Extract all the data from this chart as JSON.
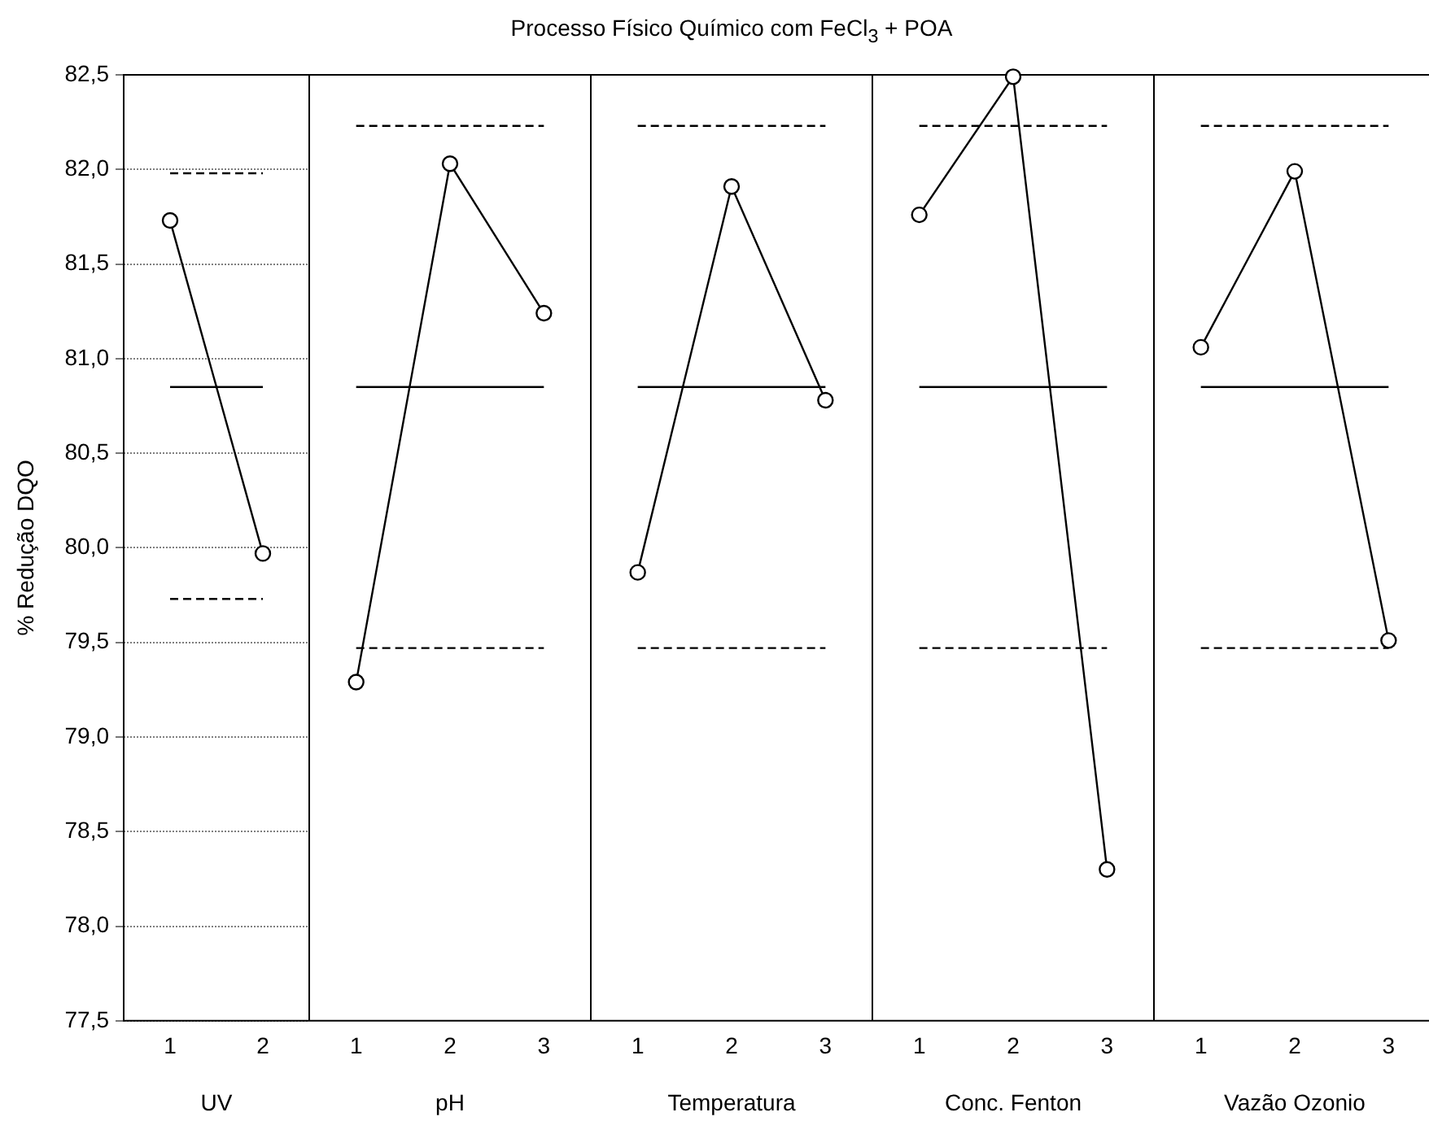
{
  "chart_data": [
    {
      "type": "line",
      "xlabel": "UV",
      "ylabel": "% Redução DQO",
      "categories": [
        "1",
        "2"
      ],
      "series": [
        {
          "color": "#000000",
          "values": [
            81.73,
            79.97
          ]
        }
      ],
      "ylim": [
        77.5,
        82.5
      ],
      "yticks": [
        {
          "value": 77.5,
          "label": "77,5"
        },
        {
          "value": 78,
          "label": "78,0"
        },
        {
          "value": 78.5,
          "label": "78,5"
        },
        {
          "value": 79,
          "label": "79,0"
        },
        {
          "value": 79.5,
          "label": "79,5"
        },
        {
          "value": 80,
          "label": "80,0"
        },
        {
          "value": 80.5,
          "label": "80,5"
        },
        {
          "value": 81,
          "label": "81,0"
        },
        {
          "value": 81.5,
          "label": "81,5"
        },
        {
          "value": 82,
          "label": "82,0"
        },
        {
          "value": 82.5,
          "label": "82,5"
        }
      ],
      "grid": "y",
      "marker": "circle",
      "line_style": "solid",
      "ref_lines": [
        {
          "axis": "y",
          "value": 80.85,
          "line_style": "solid"
        },
        {
          "axis": "y",
          "value": 81.98,
          "line_style": "dashed"
        },
        {
          "axis": "y",
          "value": 79.73,
          "line_style": "dashed"
        }
      ]
    },
    {
      "type": "line",
      "xlabel": "pH",
      "categories": [
        "1",
        "2",
        "3"
      ],
      "series": [
        {
          "color": "#000000",
          "values": [
            79.29,
            82.03,
            81.24
          ]
        }
      ],
      "ylim": [
        77.5,
        82.5
      ],
      "grid": "y",
      "marker": "circle",
      "line_style": "solid",
      "tick_labels": "x",
      "ref_lines": [
        {
          "axis": "y",
          "value": 80.85,
          "line_style": "solid"
        },
        {
          "axis": "y",
          "value": 82.23,
          "line_style": "dashed"
        },
        {
          "axis": "y",
          "value": 79.47,
          "line_style": "dashed"
        }
      ]
    },
    {
      "type": "line",
      "title": "Processo Físico Químico com FeCl$_{3}$ + POA",
      "xlabel": "Temperatura",
      "categories": [
        "1",
        "2",
        "3"
      ],
      "series": [
        {
          "color": "#000000",
          "values": [
            79.87,
            81.91,
            80.78
          ]
        }
      ],
      "ylim": [
        77.5,
        82.5
      ],
      "grid": "y",
      "marker": "circle",
      "line_style": "solid",
      "tick_labels": "x",
      "ref_lines": [
        {
          "axis": "y",
          "value": 80.85,
          "line_style": "solid"
        },
        {
          "axis": "y",
          "value": 82.23,
          "line_style": "dashed"
        },
        {
          "axis": "y",
          "value": 79.47,
          "line_style": "dashed"
        }
      ]
    },
    {
      "type": "line",
      "xlabel": "Conc. Fenton",
      "categories": [
        "1",
        "2",
        "3"
      ],
      "series": [
        {
          "color": "#000000",
          "values": [
            81.76,
            82.49,
            78.3
          ]
        }
      ],
      "ylim": [
        77.5,
        82.5
      ],
      "grid": "y",
      "marker": "circle",
      "line_style": "solid",
      "tick_labels": "x",
      "ref_lines": [
        {
          "axis": "y",
          "value": 80.85,
          "line_style": "solid"
        },
        {
          "axis": "y",
          "value": 82.23,
          "line_style": "dashed"
        },
        {
          "axis": "y",
          "value": 79.47,
          "line_style": "dashed"
        }
      ]
    },
    {
      "type": "line",
      "xlabel": "Vazão Ozonio",
      "categories": [
        "1",
        "2",
        "3"
      ],
      "series": [
        {
          "color": "#000000",
          "values": [
            81.06,
            81.99,
            79.51
          ]
        }
      ],
      "ylim": [
        77.5,
        82.5
      ],
      "grid": "y",
      "marker": "circle",
      "line_style": "solid",
      "tick_labels": "x",
      "ref_lines": [
        {
          "axis": "y",
          "value": 80.85,
          "line_style": "solid"
        },
        {
          "axis": "y",
          "value": 82.23,
          "line_style": "dashed"
        },
        {
          "axis": "y",
          "value": 79.47,
          "line_style": "dashed"
        }
      ]
    }
  ]
}
